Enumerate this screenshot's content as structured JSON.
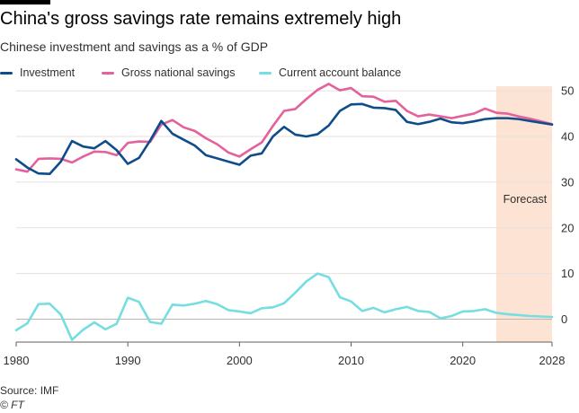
{
  "header": {
    "title": "China's gross savings rate remains extremely high",
    "subtitle": "Chinese investment and savings as a % of GDP"
  },
  "footer": {
    "source": "Source: IMF",
    "credit": "© FT"
  },
  "colors": {
    "investment": "#0f4c8a",
    "savings": "#e3629b",
    "current_account": "#76dde1",
    "forecast_band": "#fde3d4",
    "grid": "#e6e1dd",
    "zero_line": "#bcb6b0",
    "axis_text": "#33302e"
  },
  "chart_data": {
    "type": "line",
    "title": "China's gross savings rate remains extremely high",
    "subtitle": "Chinese investment and savings as a % of GDP",
    "xlabel": "",
    "ylabel": "",
    "xlim": [
      1980,
      2028
    ],
    "ylim": [
      -5,
      51
    ],
    "x_ticks": [
      1980,
      1990,
      2000,
      2010,
      2020,
      2028
    ],
    "y_ticks": [
      0,
      10,
      20,
      30,
      40,
      50
    ],
    "grid": true,
    "legend_position": "top-left",
    "forecast": {
      "label": "Forecast",
      "start": 2023,
      "end": 2028
    },
    "x": [
      1980,
      1981,
      1982,
      1983,
      1984,
      1985,
      1986,
      1987,
      1988,
      1989,
      1990,
      1991,
      1992,
      1993,
      1994,
      1995,
      1996,
      1997,
      1998,
      1999,
      2000,
      2001,
      2002,
      2003,
      2004,
      2005,
      2006,
      2007,
      2008,
      2009,
      2010,
      2011,
      2012,
      2013,
      2014,
      2015,
      2016,
      2017,
      2018,
      2019,
      2020,
      2021,
      2022,
      2023,
      2024,
      2025,
      2026,
      2027,
      2028
    ],
    "series": [
      {
        "name": "Investment",
        "key": "investment",
        "values": [
          35,
          33.2,
          31.9,
          31.8,
          34.5,
          39,
          37.8,
          37.4,
          39,
          37,
          34,
          35.3,
          39.1,
          43.4,
          40.6,
          39.3,
          38,
          35.9,
          35.2,
          34.5,
          33.8,
          35.8,
          36.3,
          40,
          42.1,
          40.4,
          40,
          40.5,
          42.4,
          45.6,
          47,
          47.1,
          46.3,
          46.2,
          45.8,
          43.2,
          42.7,
          43.2,
          43.9,
          43.1,
          42.9,
          43.3,
          43.8,
          44,
          44,
          43.8,
          43.4,
          43,
          42.6
        ]
      },
      {
        "name": "Gross national savings",
        "key": "savings",
        "values": [
          32.8,
          32.3,
          35.1,
          35.2,
          35.1,
          34.3,
          35.6,
          36.7,
          36.6,
          35.9,
          38.6,
          38.9,
          38.8,
          42.6,
          43.6,
          42,
          41.2,
          39.6,
          38.3,
          36.5,
          35.6,
          37.2,
          38.7,
          42.3,
          45.6,
          46,
          48.2,
          50.2,
          51.5,
          50.1,
          50.6,
          48.8,
          48.7,
          47.6,
          47.8,
          45.6,
          44.4,
          44.8,
          44.4,
          44,
          44.5,
          45,
          46.1,
          45.2,
          45,
          44.4,
          43.9,
          43.3,
          42.7
        ]
      },
      {
        "name": "Current account balance",
        "key": "current_account",
        "values": [
          -2.4,
          -0.9,
          3.3,
          3.4,
          1,
          -4.5,
          -2.3,
          -0.7,
          -2.2,
          -1,
          4.7,
          3.8,
          -0.6,
          -1,
          3.2,
          3,
          3.4,
          4,
          3.3,
          2,
          1.7,
          1.3,
          2.4,
          2.6,
          3.5,
          5.8,
          8.3,
          10,
          9.2,
          4.8,
          3.9,
          1.8,
          2.5,
          1.5,
          2.2,
          2.7,
          1.8,
          1.6,
          0.2,
          0.7,
          1.7,
          1.8,
          2.2,
          1.4,
          1.1,
          0.9,
          0.7,
          0.6,
          0.5
        ]
      }
    ]
  }
}
